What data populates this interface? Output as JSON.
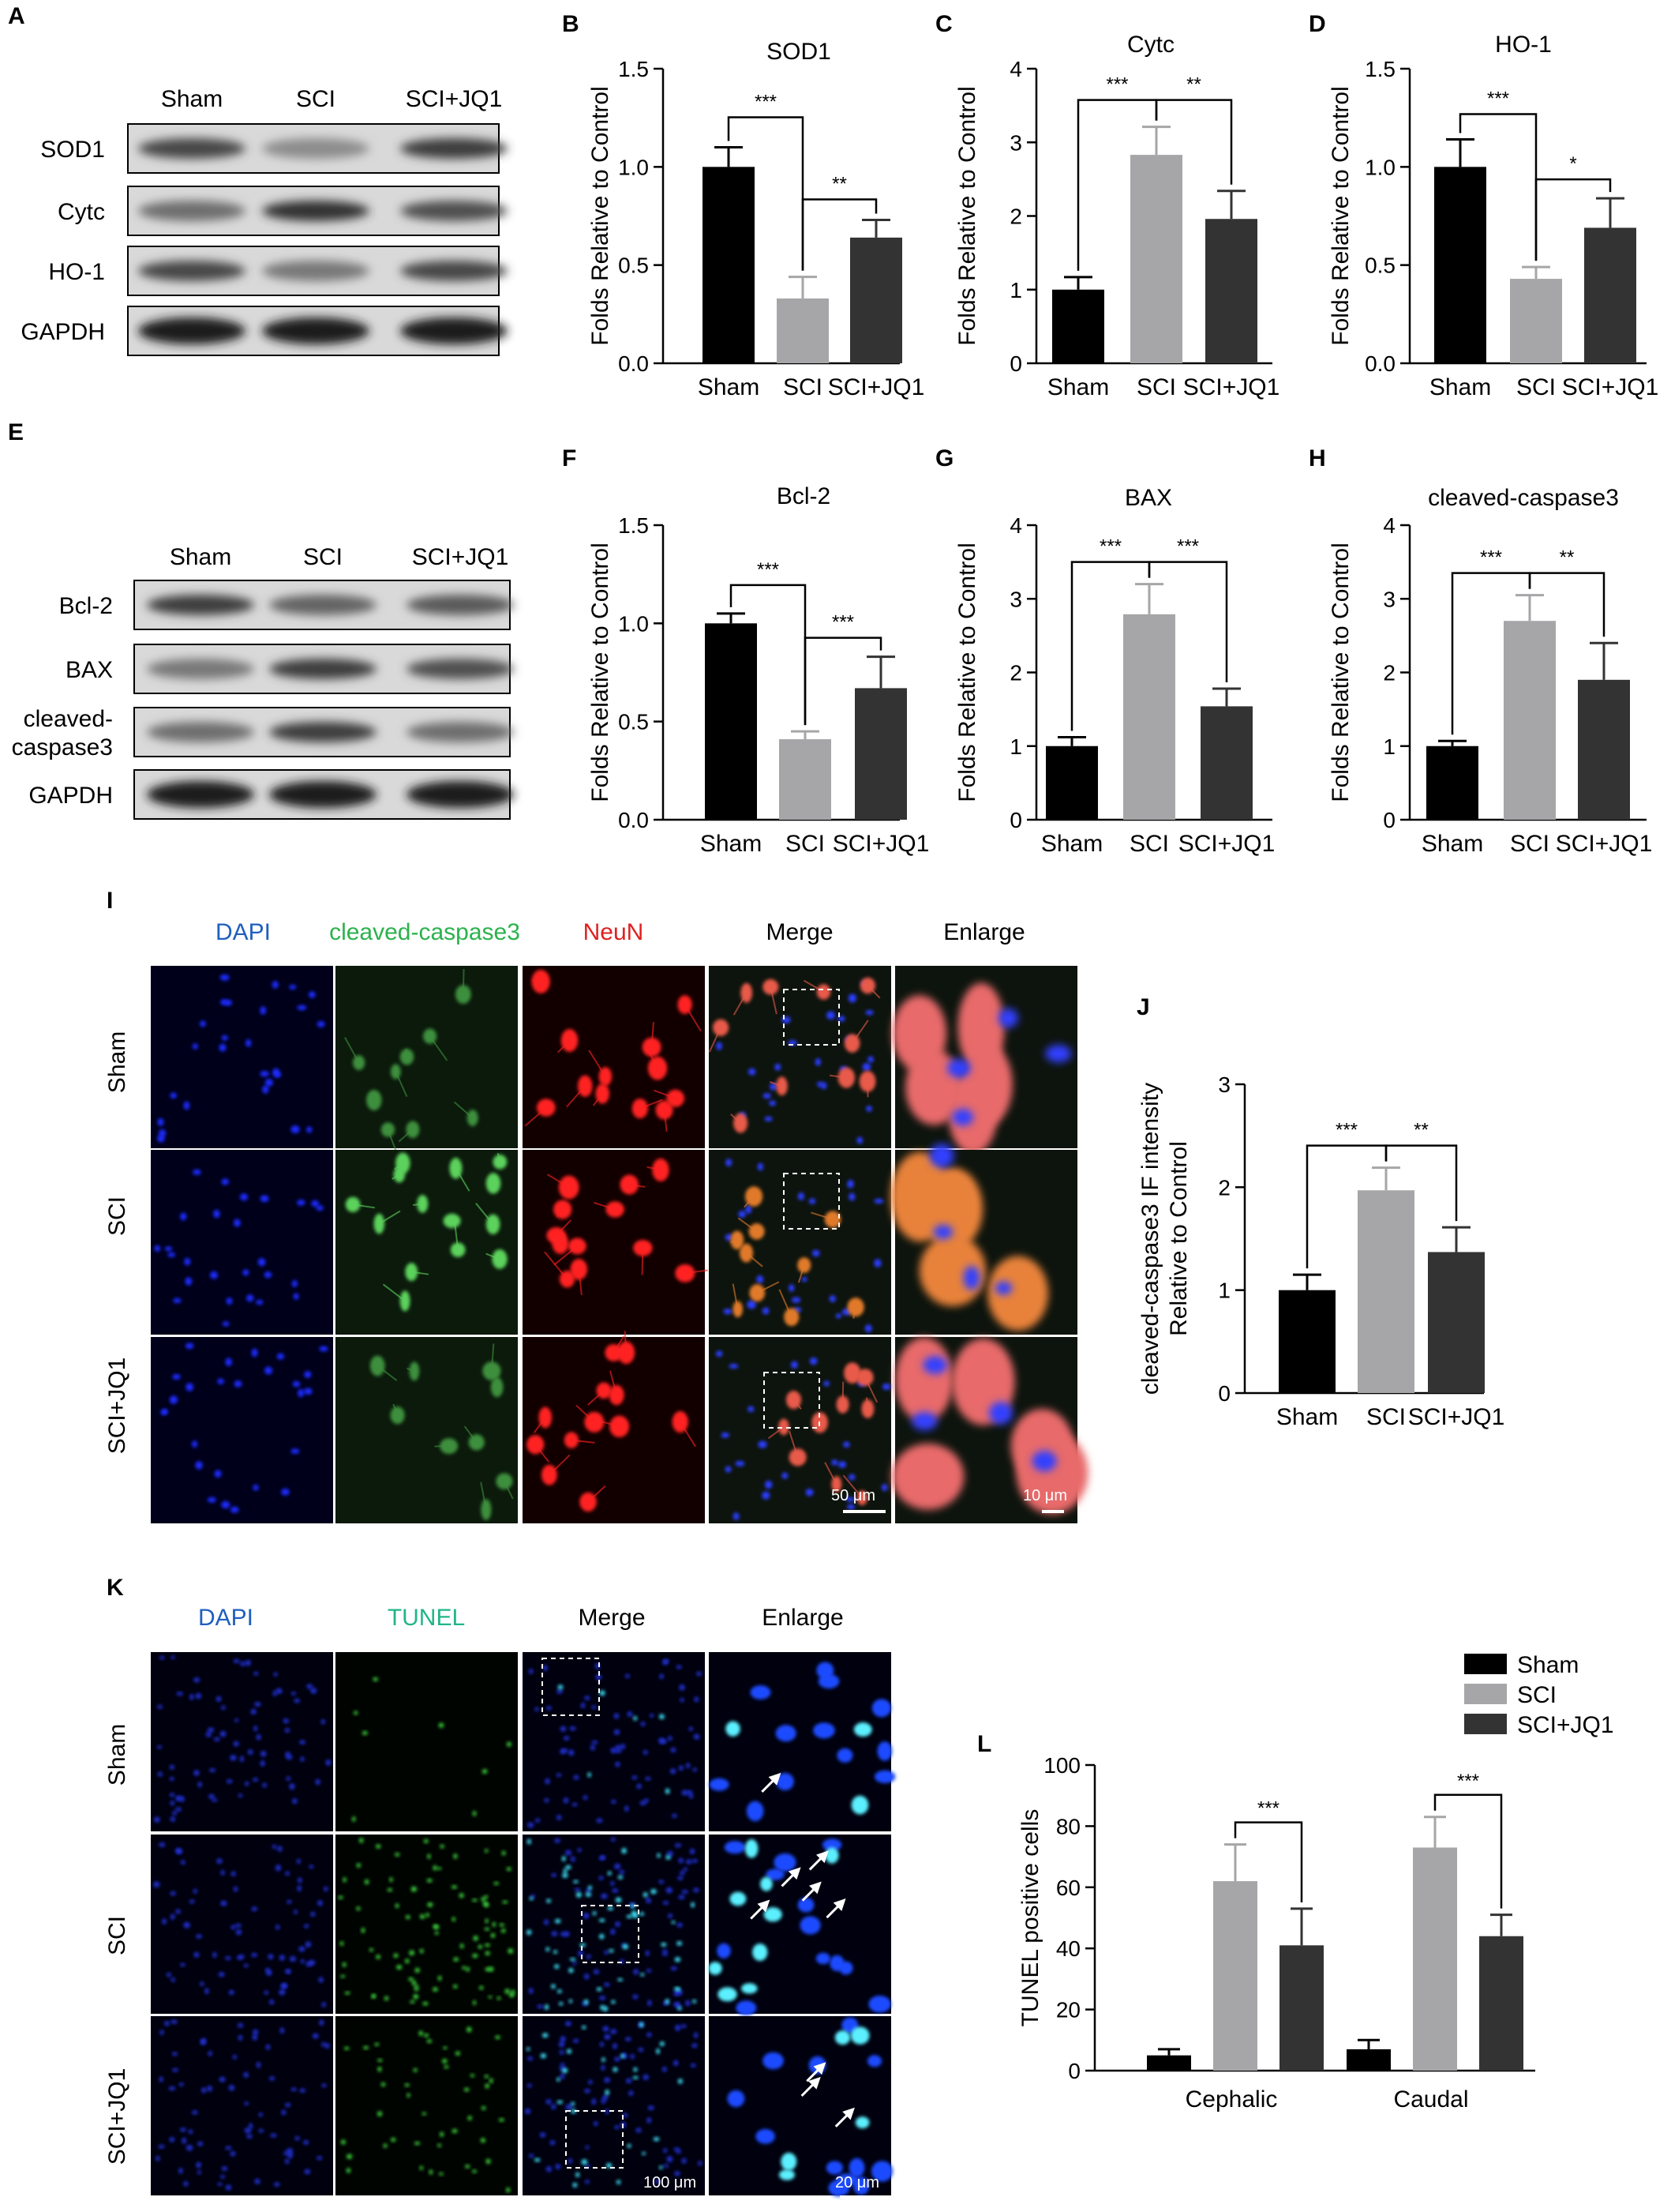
{
  "colors": {
    "sham": "#000000",
    "sci": "#a6a6a8",
    "sci_jq1": "#333333",
    "dapi_label": "#1f5fbf",
    "green_label": "#2bb24c",
    "red_label": "#e02020",
    "tunel_label": "#21b589"
  },
  "panel_letters": {
    "A": "A",
    "B": "B",
    "C": "C",
    "D": "D",
    "E": "E",
    "F": "F",
    "G": "G",
    "H": "H",
    "I": "I",
    "J": "J",
    "K": "K",
    "L": "L"
  },
  "blots": [
    {
      "columns": [
        "Sham",
        "SCI",
        "SCI+JQ1"
      ],
      "rows": [
        "SOD1",
        "Cytc",
        "HO-1",
        "GAPDH"
      ],
      "band_intensity": [
        [
          0.8,
          0.45,
          0.85
        ],
        [
          0.6,
          0.9,
          0.75
        ],
        [
          0.8,
          0.55,
          0.8
        ],
        [
          1.0,
          1.0,
          1.0
        ]
      ]
    },
    {
      "columns": [
        "Sham",
        "SCI",
        "SCI+JQ1"
      ],
      "rows": [
        "Bcl-2",
        "BAX",
        "cleaved-caspase3",
        "GAPDH"
      ],
      "row_label_lines": [
        [
          "Bcl-2"
        ],
        [
          "BAX"
        ],
        [
          "cleaved-",
          "caspase3"
        ],
        [
          "GAPDH"
        ]
      ],
      "band_intensity": [
        [
          0.85,
          0.65,
          0.7
        ],
        [
          0.55,
          0.85,
          0.75
        ],
        [
          0.6,
          0.85,
          0.6
        ],
        [
          1.0,
          1.0,
          1.0
        ]
      ]
    }
  ],
  "chart_data": [
    {
      "panel": "B",
      "type": "bar",
      "title": "SOD1",
      "ylabel": "Folds Relative to Control",
      "categories": [
        "Sham",
        "SCI",
        "SCI+JQ1"
      ],
      "values": [
        1.0,
        0.33,
        0.64
      ],
      "errors": [
        0.1,
        0.11,
        0.09
      ],
      "ylim": [
        0,
        1.5
      ],
      "yticks": [
        "0.0",
        "0.5",
        "1.0",
        "1.5"
      ],
      "sig": [
        {
          "from": 0,
          "to": 1,
          "label": "***"
        },
        {
          "from": 1,
          "to": 2,
          "label": "**"
        }
      ]
    },
    {
      "panel": "C",
      "type": "bar",
      "title": "Cytc",
      "ylabel": "Folds Relative to Control",
      "categories": [
        "Sham",
        "SCI",
        "SCI+JQ1"
      ],
      "values": [
        1.0,
        2.83,
        1.96
      ],
      "errors": [
        0.17,
        0.38,
        0.38
      ],
      "ylim": [
        0,
        4
      ],
      "yticks": [
        "0",
        "1",
        "2",
        "3",
        "4"
      ],
      "sig": [
        {
          "from": 0,
          "to": 1,
          "label": "***"
        },
        {
          "from": 1,
          "to": 2,
          "label": "**"
        }
      ]
    },
    {
      "panel": "D",
      "type": "bar",
      "title": "HO-1",
      "ylabel": "Folds Relative to Control",
      "categories": [
        "Sham",
        "SCI",
        "SCI+JQ1"
      ],
      "values": [
        1.0,
        0.43,
        0.69
      ],
      "errors": [
        0.14,
        0.06,
        0.15
      ],
      "ylim": [
        0,
        1.5
      ],
      "yticks": [
        "0.0",
        "0.5",
        "1.0",
        "1.5"
      ],
      "sig": [
        {
          "from": 0,
          "to": 1,
          "label": "***"
        },
        {
          "from": 1,
          "to": 2,
          "label": "*"
        }
      ]
    },
    {
      "panel": "F",
      "type": "bar",
      "title": "Bcl-2",
      "ylabel": "Folds Relative to Control",
      "categories": [
        "Sham",
        "SCI",
        "SCI+JQ1"
      ],
      "values": [
        1.0,
        0.41,
        0.67
      ],
      "errors": [
        0.05,
        0.04,
        0.16
      ],
      "ylim": [
        0,
        1.5
      ],
      "yticks": [
        "0.0",
        "0.5",
        "1.0",
        "1.5"
      ],
      "sig": [
        {
          "from": 0,
          "to": 1,
          "label": "***"
        },
        {
          "from": 1,
          "to": 2,
          "label": "***"
        }
      ]
    },
    {
      "panel": "G",
      "type": "bar",
      "title": "BAX",
      "ylabel": "Folds Relative to Control",
      "categories": [
        "Sham",
        "SCI",
        "SCI+JQ1"
      ],
      "values": [
        1.0,
        2.79,
        1.54
      ],
      "errors": [
        0.12,
        0.41,
        0.24
      ],
      "ylim": [
        0,
        4
      ],
      "yticks": [
        "0",
        "1",
        "2",
        "3",
        "4"
      ],
      "sig": [
        {
          "from": 0,
          "to": 1,
          "label": "***"
        },
        {
          "from": 1,
          "to": 2,
          "label": "***"
        }
      ]
    },
    {
      "panel": "H",
      "type": "bar",
      "title": "cleaved-caspase3",
      "ylabel": "Folds Relative to Control",
      "categories": [
        "Sham",
        "SCI",
        "SCI+JQ1"
      ],
      "values": [
        1.0,
        2.7,
        1.9
      ],
      "errors": [
        0.07,
        0.35,
        0.5
      ],
      "ylim": [
        0,
        4
      ],
      "yticks": [
        "0",
        "1",
        "2",
        "3",
        "4"
      ],
      "sig": [
        {
          "from": 0,
          "to": 1,
          "label": "***"
        },
        {
          "from": 1,
          "to": 2,
          "label": "**"
        }
      ]
    },
    {
      "panel": "J",
      "type": "bar",
      "title": "",
      "ylabel": [
        "cleaved-caspase3 IF intensity",
        "Relative to Control"
      ],
      "categories": [
        "Sham",
        "SCI",
        "SCI+JQ1"
      ],
      "values": [
        1.0,
        1.97,
        1.37
      ],
      "errors": [
        0.15,
        0.22,
        0.24
      ],
      "ylim": [
        0,
        3
      ],
      "yticks": [
        "0",
        "1",
        "2",
        "3"
      ],
      "sig": [
        {
          "from": 0,
          "to": 1,
          "label": "***"
        },
        {
          "from": 1,
          "to": 2,
          "label": "**"
        }
      ]
    },
    {
      "panel": "L",
      "type": "bar",
      "title": "",
      "ylabel": "TUNEL positive cells",
      "categories": [
        "Cephalic",
        "Caudal"
      ],
      "series": [
        {
          "name": "Sham",
          "values": [
            5,
            7
          ],
          "errors": [
            2,
            3
          ]
        },
        {
          "name": "SCI",
          "values": [
            62,
            73
          ],
          "errors": [
            12,
            10
          ]
        },
        {
          "name": "SCI+JQ1",
          "values": [
            41,
            44
          ],
          "errors": [
            12,
            7
          ]
        }
      ],
      "ylim": [
        0,
        100
      ],
      "yticks": [
        "0",
        "20",
        "40",
        "60",
        "80",
        "100"
      ],
      "legend_position": "top-right",
      "sig": [
        {
          "group": 0,
          "from": 1,
          "to": 2,
          "label": "***"
        },
        {
          "group": 1,
          "from": 1,
          "to": 2,
          "label": "***"
        }
      ]
    }
  ],
  "if_panel": {
    "column_labels": [
      "DAPI",
      "cleaved-caspase3",
      "NeuN",
      "Merge",
      "Enlarge"
    ],
    "row_labels": [
      "Sham",
      "SCI",
      "SCI+JQ1"
    ],
    "scale_bar_merge": "50 μm",
    "scale_bar_enlarge": "10 μm"
  },
  "tunel_panel": {
    "column_labels": [
      "DAPI",
      "TUNEL",
      "Merge",
      "Enlarge"
    ],
    "row_labels": [
      "Sham",
      "SCI",
      "SCI+JQ1"
    ],
    "scale_bar_merge": "100 μm",
    "scale_bar_enlarge": "20 μm"
  }
}
